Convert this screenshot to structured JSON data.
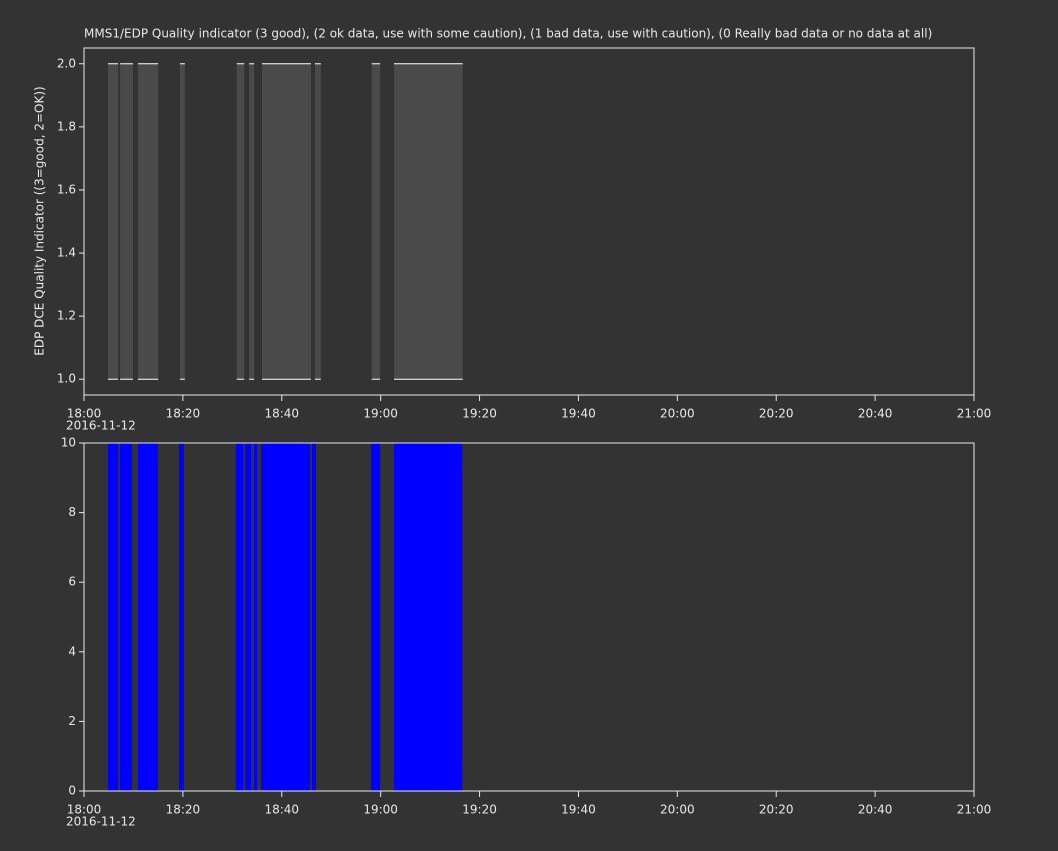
{
  "chart_data": [
    {
      "type": "band",
      "title": "MMS1/EDP  Quality indicator (3 good), (2 ok data, use with some caution), (1 bad data, use with caution), (0 Really bad data or no data at all)",
      "y_label": "EDP DCE Quality Indicator ((3=good, 2=OK))",
      "date_label": "2016-11-12",
      "color": "#4a4a4a",
      "line_color": "#ffffff",
      "intervals": [
        [
          4.85,
          6.9
        ],
        [
          7.3,
          9.9
        ],
        [
          10.9,
          15.0
        ],
        [
          19.4,
          20.4
        ],
        [
          30.9,
          32.4
        ],
        [
          33.4,
          34.4
        ],
        [
          36.0,
          45.9
        ],
        [
          46.7,
          47.9
        ],
        [
          58.2,
          59.9
        ],
        [
          62.7,
          76.6
        ]
      ],
      "values": [
        2,
        2,
        2,
        2,
        2,
        2,
        2,
        2,
        2,
        2
      ],
      "low_values": [
        1,
        1,
        1,
        1,
        1,
        1,
        1,
        1,
        1,
        1
      ],
      "xlim": [
        0,
        180
      ],
      "xticks": [
        {
          "value": 0,
          "label": "18:00"
        },
        {
          "value": 20,
          "label": "18:20"
        },
        {
          "value": 40,
          "label": "18:40"
        },
        {
          "value": 60,
          "label": "19:00"
        },
        {
          "value": 80,
          "label": "19:20"
        },
        {
          "value": 100,
          "label": "19:40"
        },
        {
          "value": 120,
          "label": "20:00"
        },
        {
          "value": 140,
          "label": "20:20"
        },
        {
          "value": 160,
          "label": "20:40"
        },
        {
          "value": 180,
          "label": "21:00"
        }
      ],
      "ylim": [
        0.95,
        2.05
      ],
      "yticks": [
        {
          "value": 1,
          "label": "1.0"
        },
        1.2,
        1.4,
        1.6,
        1.8,
        {
          "value": 2,
          "label": "2.0"
        }
      ]
    },
    {
      "type": "bar",
      "date_label": "2016-11-12",
      "color": "#0000ff",
      "intervals": [
        [
          4.85,
          6.9
        ],
        [
          7.3,
          9.7
        ],
        [
          10.9,
          14.95
        ],
        [
          19.2,
          20.2
        ],
        [
          30.7,
          32.2
        ],
        [
          32.6,
          33.8
        ],
        [
          34.4,
          35.0
        ],
        [
          35.8,
          45.7
        ],
        [
          46.1,
          46.9
        ],
        [
          58.0,
          59.9
        ],
        [
          62.7,
          76.5
        ]
      ],
      "values": [
        10,
        10,
        10,
        10,
        10,
        10,
        10,
        10,
        10,
        10,
        10
      ],
      "xlim": [
        0,
        180
      ],
      "xticks": [
        {
          "value": 0,
          "label": "18:00"
        },
        {
          "value": 20,
          "label": "18:20"
        },
        {
          "value": 40,
          "label": "18:40"
        },
        {
          "value": 60,
          "label": "19:00"
        },
        {
          "value": 80,
          "label": "19:20"
        },
        {
          "value": 100,
          "label": "19:40"
        },
        {
          "value": 120,
          "label": "20:00"
        },
        {
          "value": 140,
          "label": "20:20"
        },
        {
          "value": 160,
          "label": "20:40"
        },
        {
          "value": 180,
          "label": "21:00"
        }
      ],
      "ylim": [
        0,
        10
      ],
      "yticks": [
        0,
        2,
        4,
        6,
        8,
        10
      ]
    }
  ]
}
